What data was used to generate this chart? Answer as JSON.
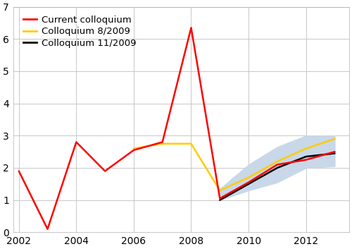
{
  "title": "",
  "current_colloquium_x": [
    2002,
    2003,
    2004,
    2005,
    2006,
    2007,
    2008,
    2009,
    2010,
    2011,
    2012,
    2013
  ],
  "current_colloquium_y": [
    1.9,
    0.1,
    2.8,
    1.9,
    2.55,
    2.8,
    6.35,
    1.05,
    1.55,
    2.1,
    2.25,
    2.5
  ],
  "colloquium8_x": [
    2006,
    2007,
    2008,
    2009,
    2010,
    2011,
    2012,
    2013
  ],
  "colloquium8_y": [
    2.6,
    2.75,
    2.75,
    1.3,
    1.7,
    2.2,
    2.6,
    2.9
  ],
  "colloquium11_x": [
    2009,
    2010,
    2011,
    2012,
    2013
  ],
  "colloquium11_y": [
    1.0,
    1.5,
    2.0,
    2.35,
    2.45
  ],
  "fan_x": [
    2009,
    2010,
    2011,
    2012,
    2013
  ],
  "fan_upper": [
    1.35,
    2.1,
    2.65,
    3.0,
    3.0
  ],
  "fan_lower": [
    1.0,
    1.3,
    1.55,
    2.0,
    2.05
  ],
  "current_color": "#ff0000",
  "colloquium8_color": "#ffcc00",
  "colloquium11_color": "#000000",
  "fan_color": "#c8d8e8",
  "xlim": [
    2001.8,
    2013.5
  ],
  "ylim": [
    0,
    7
  ],
  "yticks": [
    0,
    1,
    2,
    3,
    4,
    5,
    6,
    7
  ],
  "xticks": [
    2002,
    2004,
    2006,
    2008,
    2010,
    2012
  ],
  "legend_labels": [
    "Current colloquium",
    "Colloquium 8/2009",
    "Colloquium 11/2009"
  ],
  "bg_color": "#ffffff",
  "plot_bg_color": "#ffffff",
  "grid_color": "#c8c8c8",
  "spine_color": "#b0b0b0",
  "linewidth": 1.8,
  "fontsize_tick": 10,
  "fontsize_legend": 9.5
}
